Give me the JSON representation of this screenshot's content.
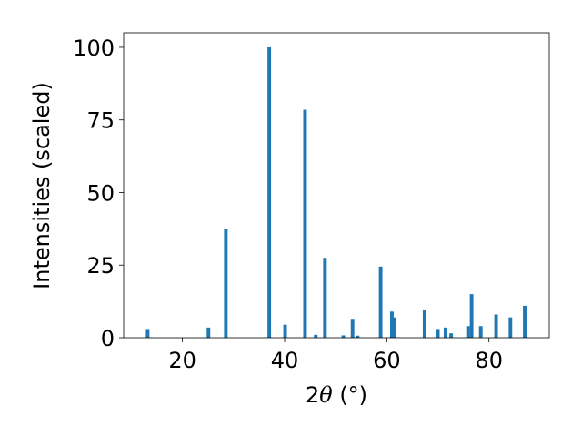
{
  "chart_data": {
    "type": "bar",
    "xlabel_prefix": "2",
    "xlabel_symbol": "θ",
    "xlabel_unit": " (°)",
    "ylabel": "Intensities (scaled)",
    "xlim": [
      8.5,
      91.8
    ],
    "ylim": [
      0,
      105
    ],
    "xticks": [
      20,
      40,
      60,
      80
    ],
    "yticks": [
      0,
      25,
      50,
      75,
      100
    ],
    "bar_width": 0.7,
    "color": "#1f77b4",
    "grid": false,
    "x": [
      13.2,
      25.1,
      28.5,
      37.0,
      40.1,
      44.0,
      46.1,
      47.9,
      51.5,
      53.3,
      54.3,
      58.8,
      61.0,
      61.4,
      67.4,
      70.0,
      71.5,
      72.6,
      75.9,
      76.6,
      78.4,
      81.4,
      84.2,
      87.0
    ],
    "values": [
      3.0,
      3.5,
      37.5,
      100.0,
      4.5,
      78.5,
      1.0,
      27.5,
      0.8,
      6.5,
      0.7,
      24.5,
      9.0,
      7.0,
      9.5,
      3.0,
      3.5,
      1.5,
      4.0,
      15.0,
      4.0,
      8.0,
      7.0,
      11.0
    ]
  }
}
